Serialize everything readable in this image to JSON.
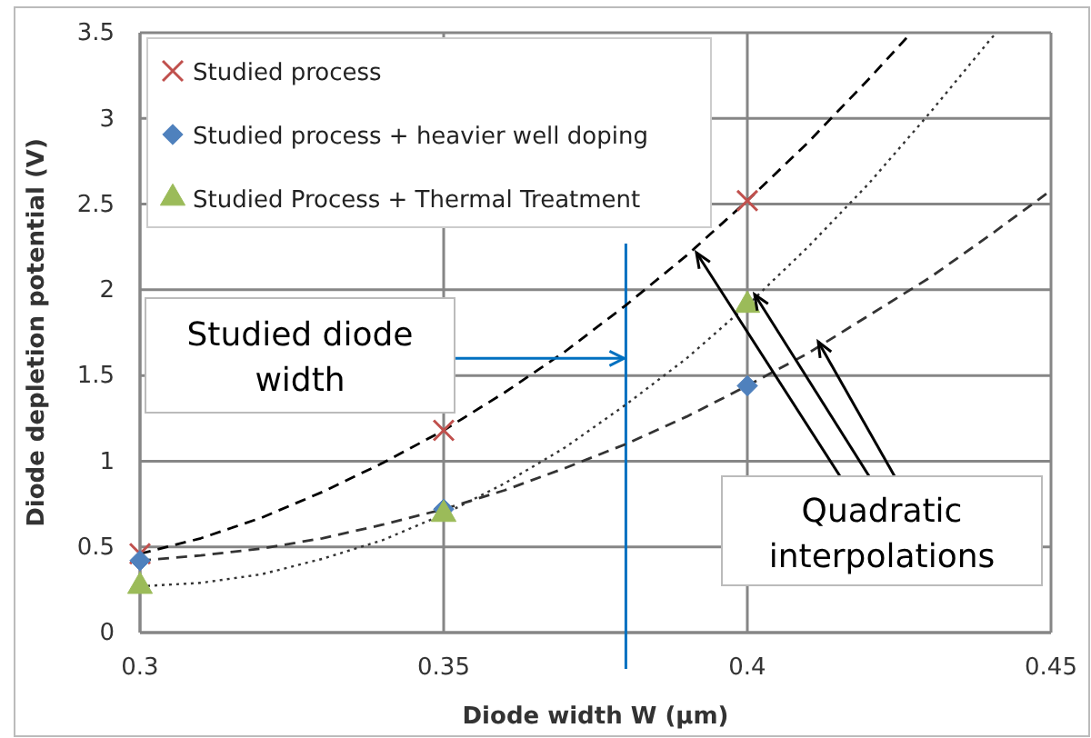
{
  "chart_data": {
    "type": "scatter",
    "xlabel": "Diode width W (µm)",
    "ylabel": "Diode depletion potential (V)",
    "xlim": [
      0.3,
      0.45
    ],
    "xticks": [
      0.3,
      0.35,
      0.4,
      0.45
    ],
    "ylim": [
      0,
      3.5
    ],
    "yticks": [
      0,
      0.5,
      1,
      1.5,
      2,
      2.5,
      3,
      3.5
    ],
    "grid": true,
    "legend": "top left",
    "series": [
      {
        "name": "Studied process",
        "marker": "cross",
        "color": "#c0504d",
        "x": [
          0.3,
          0.35,
          0.4
        ],
        "values": [
          0.46,
          1.18,
          2.52
        ]
      },
      {
        "name": "Studied process + heavier well doping",
        "marker": "diamond",
        "color": "#4f81bd",
        "x": [
          0.3,
          0.35,
          0.4
        ],
        "values": [
          0.42,
          0.72,
          1.44
        ]
      },
      {
        "name": "Studied Process + Thermal Treatment",
        "marker": "triangle",
        "color": "#9bbb59",
        "x": [
          0.3,
          0.35,
          0.4
        ],
        "values": [
          0.27,
          0.69,
          1.91
        ]
      },
      {
        "type": "line",
        "line_style": "dashed",
        "marker": "none",
        "color": "#000000",
        "x": [
          0.3,
          0.31,
          0.32,
          0.33,
          0.34,
          0.35,
          0.36,
          0.37,
          0.38,
          0.39,
          0.4,
          0.41,
          0.42,
          0.427
        ],
        "values": [
          0.46,
          0.55,
          0.67,
          0.82,
          0.99,
          1.18,
          1.4,
          1.64,
          1.91,
          2.2,
          2.52,
          2.86,
          3.23,
          3.5
        ]
      },
      {
        "type": "line",
        "line_style": "dashed",
        "marker": "none",
        "color": "#333333",
        "x": [
          0.3,
          0.31,
          0.32,
          0.33,
          0.34,
          0.35,
          0.36,
          0.37,
          0.38,
          0.39,
          0.4,
          0.41,
          0.42,
          0.43,
          0.44,
          0.45
        ],
        "values": [
          0.42,
          0.45,
          0.49,
          0.55,
          0.63,
          0.72,
          0.83,
          0.96,
          1.1,
          1.26,
          1.44,
          1.63,
          1.85,
          2.07,
          2.32,
          2.58
        ]
      },
      {
        "type": "line",
        "line_style": "dotted",
        "marker": "none",
        "color": "#333333",
        "x": [
          0.3,
          0.31,
          0.32,
          0.33,
          0.34,
          0.35,
          0.36,
          0.37,
          0.38,
          0.39,
          0.4,
          0.41,
          0.42,
          0.43,
          0.44,
          0.441
        ],
        "values": [
          0.27,
          0.29,
          0.34,
          0.43,
          0.54,
          0.69,
          0.87,
          1.08,
          1.33,
          1.6,
          1.91,
          2.25,
          2.62,
          3.03,
          3.46,
          3.5
        ]
      }
    ],
    "ref_lines": [
      {
        "axis": "x",
        "value": 0.38,
        "color": "#0070c0"
      }
    ],
    "annotations": [
      {
        "text": "Studied diode width",
        "x": 0.38,
        "y": 1.6
      },
      {
        "text": "Quadratic interpolations"
      }
    ]
  }
}
